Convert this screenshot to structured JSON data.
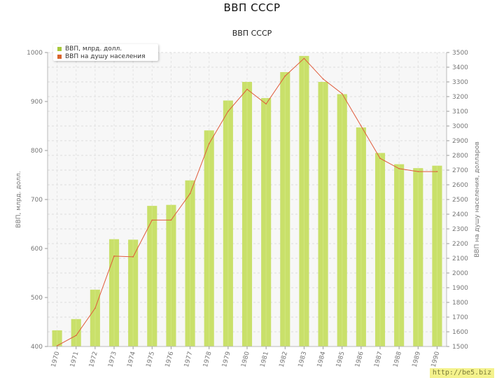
{
  "page": {
    "title": "ВВП СССР"
  },
  "watermark": "http://be5.biz",
  "colors": {
    "bar": "#c9e06a",
    "line": "#e05a3a",
    "legend_bar": "#a8c93a",
    "legend_line": "#d9632b"
  },
  "chart_data": {
    "type": "bar",
    "title": "ВВП СССР",
    "xlabel": "",
    "ylabel": "ВВП, млрд. долл.",
    "y2label": "ВВП на душу населения, долларов",
    "categories": [
      "1970",
      "1971",
      "1972",
      "1973",
      "1974",
      "1975",
      "1976",
      "1977",
      "1978",
      "1979",
      "1980",
      "1981",
      "1982",
      "1983",
      "1984",
      "1985",
      "1986",
      "1987",
      "1988",
      "1989",
      "1990"
    ],
    "ylim": [
      400,
      1000
    ],
    "yticks": [
      400,
      500,
      600,
      700,
      800,
      900,
      1000
    ],
    "y2lim": [
      1500,
      3500
    ],
    "y2ticks": [
      1500,
      1600,
      1700,
      1800,
      1900,
      2000,
      2100,
      2200,
      2300,
      2400,
      2500,
      2600,
      2700,
      2800,
      2900,
      3000,
      3100,
      3200,
      3300,
      3400,
      3500
    ],
    "grid": true,
    "legend_position": "top-left",
    "series": [
      {
        "name": "ВВП, млрд. долл.",
        "type": "bar",
        "axis": "left",
        "values": [
          433,
          456,
          516,
          619,
          618,
          687,
          689,
          739,
          841,
          902,
          940,
          907,
          960,
          993,
          940,
          915,
          847,
          795,
          772,
          764,
          769
        ]
      },
      {
        "name": "ВВП на душу населения",
        "type": "line",
        "axis": "right",
        "values": [
          1505,
          1575,
          1760,
          2115,
          2110,
          2360,
          2360,
          2540,
          2880,
          3100,
          3250,
          3150,
          3340,
          3460,
          3320,
          3220,
          3000,
          2780,
          2710,
          2690,
          2690
        ]
      }
    ]
  }
}
